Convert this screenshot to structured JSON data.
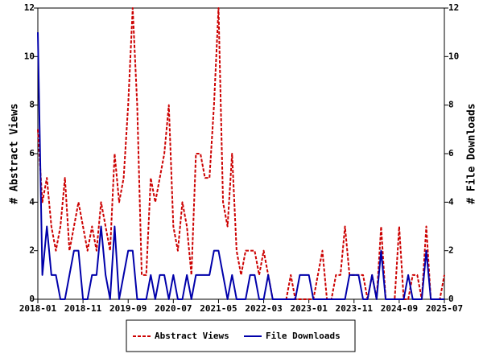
{
  "chart_data": {
    "type": "line",
    "categories": [
      "2018-01",
      null,
      null,
      null,
      null,
      null,
      null,
      null,
      null,
      null,
      "2018-11",
      null,
      null,
      null,
      null,
      null,
      null,
      null,
      null,
      null,
      "2019-09",
      null,
      null,
      null,
      null,
      null,
      null,
      null,
      null,
      null,
      "2020-07",
      null,
      null,
      null,
      null,
      null,
      null,
      null,
      null,
      null,
      "2021-05",
      null,
      null,
      null,
      null,
      null,
      null,
      null,
      null,
      null,
      "2022-03",
      null,
      null,
      null,
      null,
      null,
      null,
      null,
      null,
      null,
      "2023-01",
      null,
      null,
      null,
      null,
      null,
      null,
      null,
      null,
      null,
      "2023-11",
      null,
      null,
      null,
      null,
      null,
      null,
      null,
      null,
      null,
      "2024-09",
      null,
      null,
      null,
      null,
      null,
      null,
      null,
      null,
      null,
      "2025-07"
    ],
    "series": [
      {
        "name": "Abstract Views",
        "color": "#cc0000",
        "values": [
          7,
          4,
          5,
          3,
          2,
          3,
          5,
          2,
          3,
          4,
          3,
          2,
          3,
          2,
          4,
          3,
          2,
          6,
          4,
          5,
          8,
          12,
          8,
          1,
          1,
          5,
          4,
          5,
          6,
          8,
          3,
          2,
          4,
          3,
          1,
          6,
          6,
          5,
          5,
          8,
          12,
          4,
          3,
          6,
          2,
          1,
          2,
          2,
          2,
          1,
          2,
          1,
          0,
          0,
          0,
          0,
          1,
          0,
          0,
          0,
          0,
          0,
          1,
          2,
          0,
          0,
          1,
          1,
          3,
          1,
          1,
          1,
          1,
          0,
          1,
          0,
          3,
          0,
          0,
          0,
          3,
          0,
          0,
          1,
          1,
          0,
          3,
          0,
          0,
          0,
          1
        ]
      },
      {
        "name": "File Downloads",
        "color": "#0000aa",
        "axis": "y2",
        "values": [
          11,
          1,
          3,
          1,
          1,
          0,
          0,
          1,
          2,
          2,
          0,
          0,
          1,
          1,
          3,
          1,
          0,
          3,
          0,
          1,
          2,
          2,
          0,
          0,
          0,
          1,
          0,
          1,
          1,
          0,
          1,
          0,
          0,
          1,
          0,
          1,
          1,
          1,
          1,
          2,
          2,
          1,
          0,
          1,
          0,
          0,
          0,
          1,
          1,
          0,
          0,
          1,
          0,
          0,
          0,
          0,
          0,
          0,
          1,
          1,
          1,
          0,
          0,
          0,
          0,
          0,
          0,
          0,
          0,
          1,
          1,
          1,
          0,
          0,
          1,
          0,
          2,
          0,
          0,
          0,
          0,
          0,
          1,
          0,
          0,
          0,
          2,
          0,
          0,
          0,
          0
        ]
      }
    ],
    "ylabel": "# Abstract Views",
    "y2label": "# File Downloads",
    "ylim": [
      0,
      12
    ],
    "yticks": [
      0,
      2,
      4,
      6,
      8,
      10,
      12
    ],
    "y2lim": [
      0,
      12
    ],
    "y2ticks": [
      0,
      2,
      4,
      6,
      8,
      10,
      12
    ],
    "legend": "bottom"
  }
}
